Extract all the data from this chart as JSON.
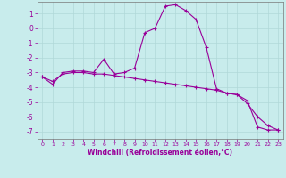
{
  "xlabel": "Windchill (Refroidissement éolien,°C)",
  "background_color": "#c8ecec",
  "line_color": "#990099",
  "grid_color": "#b0d8d8",
  "xlim": [
    -0.5,
    23.5
  ],
  "ylim": [
    -7.5,
    1.8
  ],
  "yticks": [
    1,
    0,
    -1,
    -2,
    -3,
    -4,
    -5,
    -6,
    -7
  ],
  "xticks": [
    0,
    1,
    2,
    3,
    4,
    5,
    6,
    7,
    8,
    9,
    10,
    11,
    12,
    13,
    14,
    15,
    16,
    17,
    18,
    19,
    20,
    21,
    22,
    23
  ],
  "series1_x": [
    0,
    1,
    2,
    3,
    4,
    5,
    6,
    7,
    8,
    9,
    10,
    11,
    12,
    13,
    14,
    15,
    16,
    17,
    18,
    19,
    20,
    21,
    22,
    23
  ],
  "series1_y": [
    -3.3,
    -3.8,
    -3.0,
    -2.9,
    -2.9,
    -3.0,
    -2.1,
    -3.1,
    -3.0,
    -2.7,
    -0.3,
    0.0,
    1.5,
    1.6,
    1.2,
    0.6,
    -1.3,
    -4.1,
    -4.4,
    -4.5,
    -4.9,
    -6.7,
    -6.9,
    -6.9
  ],
  "series2_x": [
    0,
    1,
    2,
    3,
    4,
    5,
    6,
    7,
    8,
    9,
    10,
    11,
    12,
    13,
    14,
    15,
    16,
    17,
    18,
    19,
    20,
    21,
    22,
    23
  ],
  "series2_y": [
    -3.3,
    -3.6,
    -3.1,
    -3.0,
    -3.0,
    -3.1,
    -3.1,
    -3.2,
    -3.3,
    -3.4,
    -3.5,
    -3.6,
    -3.7,
    -3.8,
    -3.9,
    -4.0,
    -4.1,
    -4.2,
    -4.4,
    -4.5,
    -5.1,
    -6.0,
    -6.6,
    -6.9
  ]
}
